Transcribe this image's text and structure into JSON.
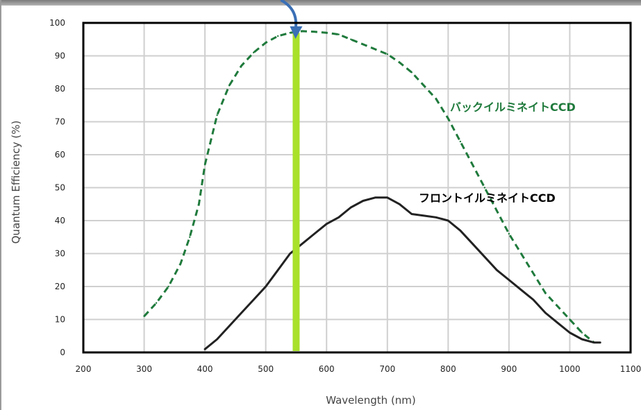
{
  "chart_data": {
    "type": "line",
    "title": "",
    "xlabel": "Wavelength (nm)",
    "ylabel": "Quantum Efficiency (%)",
    "xlim": [
      200,
      1100
    ],
    "ylim": [
      0,
      100
    ],
    "x_ticks": [
      "200",
      "300",
      "400",
      "500",
      "600",
      "700",
      "800",
      "900",
      "1000",
      "1100"
    ],
    "y_ticks": [
      "0",
      "10",
      "20",
      "30",
      "40",
      "50",
      "60",
      "70",
      "80",
      "90",
      "100"
    ],
    "grid": true,
    "series": [
      {
        "name": "バックイルミネイトCCD",
        "color": "#1f7a3c",
        "style": "dashed",
        "x": [
          300,
          320,
          340,
          360,
          375,
          390,
          400,
          420,
          440,
          460,
          480,
          500,
          520,
          540,
          560,
          580,
          600,
          620,
          640,
          660,
          680,
          700,
          720,
          740,
          760,
          780,
          800,
          820,
          840,
          860,
          880,
          900,
          920,
          940,
          960,
          980,
          1000,
          1020,
          1040
        ],
        "values": [
          11,
          15,
          20,
          27,
          35,
          45,
          57,
          72,
          81,
          87,
          91,
          94,
          96,
          97,
          97.5,
          97.3,
          97,
          96.5,
          95,
          93.5,
          92,
          90.5,
          88,
          85,
          81,
          77,
          71,
          64,
          57,
          50,
          43,
          36,
          30,
          24,
          18,
          14,
          10,
          6,
          3
        ]
      },
      {
        "name": "フロントイルミネイトCCD",
        "color": "#222222",
        "style": "solid",
        "x": [
          400,
          420,
          440,
          460,
          480,
          500,
          520,
          540,
          560,
          580,
          600,
          620,
          640,
          660,
          680,
          700,
          720,
          740,
          760,
          780,
          800,
          820,
          840,
          860,
          880,
          900,
          920,
          940,
          960,
          980,
          1000,
          1020,
          1040,
          1050
        ],
        "values": [
          1,
          4,
          8,
          12,
          16,
          20,
          25,
          30,
          33,
          36,
          39,
          41,
          44,
          46,
          47,
          47,
          45,
          42,
          41.5,
          41,
          40,
          37,
          33,
          29,
          25,
          22,
          19,
          16,
          12,
          9,
          6,
          4,
          3,
          3
        ]
      }
    ],
    "marker": {
      "wavelength": 550,
      "color": "#a8e02a"
    },
    "arrow_color": "#3a6fb5"
  }
}
